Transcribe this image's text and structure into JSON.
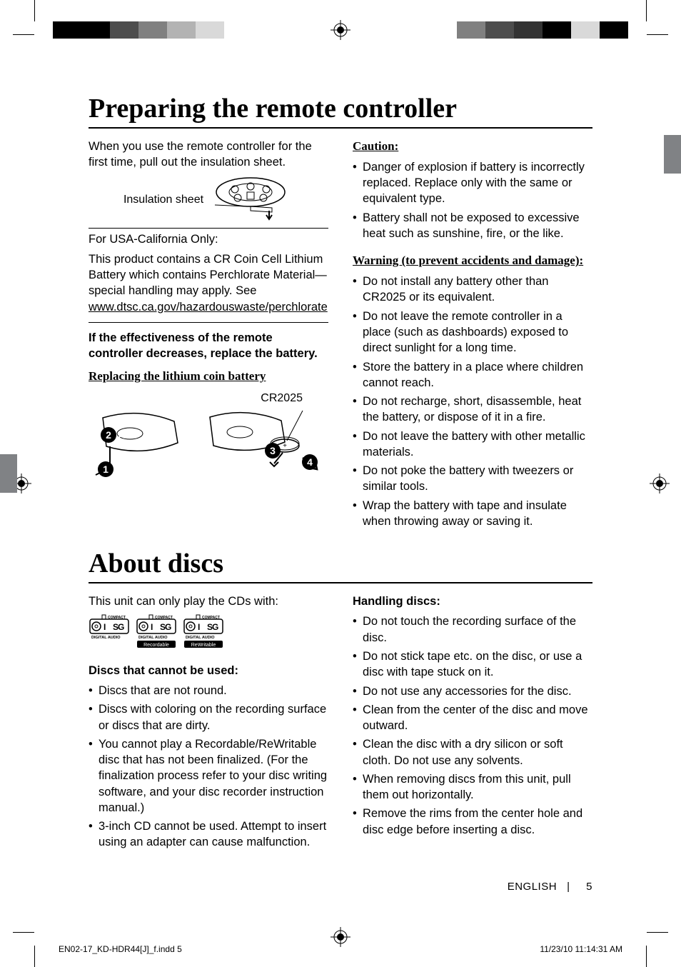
{
  "print_marks": {
    "left_bar_colors": [
      "#000000",
      "#000000",
      "#4d4d4d",
      "#808080",
      "#b3b3b3",
      "#d9d9d9",
      "#ffffff"
    ],
    "right_bar_colors": [
      "#ffffff",
      "#808080",
      "#4d4d4d",
      "#333333",
      "#000000",
      "#d9d9d9",
      "#000000"
    ],
    "side_tab_color": "#808285"
  },
  "section1": {
    "title": "Preparing the remote controller",
    "intro": "When you use the remote controller for the first time, pull out the insulation sheet.",
    "insulation_label": "Insulation sheet",
    "usa_box": {
      "line1": "For USA-California Only:",
      "body_pre": "This product contains a CR Coin Cell Lithium Battery which contains Perchlorate Material—special handling may apply. See ",
      "link": "www.dtsc.ca.gov/hazardouswaste/perchlorate"
    },
    "effectiveness": "If the effectiveness of the remote controller decreases, replace the battery.",
    "replacing_heading": "Replacing the lithium coin battery",
    "battery_label": "CR2025",
    "caution_heading": "Caution:",
    "caution_items": [
      "Danger of explosion if battery is incorrectly replaced. Replace only with the same or equivalent type.",
      "Battery shall not be exposed to excessive heat such as sunshine, fire, or the like."
    ],
    "warning_heading": "Warning (to prevent accidents and damage):",
    "warning_items": [
      "Do not install any battery other than CR2025 or its equivalent.",
      "Do not leave the remote controller in a place (such as dashboards) exposed to direct sunlight for a long time.",
      "Store the battery in a place where children cannot reach.",
      "Do not recharge, short, disassemble, heat the battery, or dispose of it in a fire.",
      "Do not leave the battery with other metallic materials.",
      "Do not poke the battery with tweezers or similar tools.",
      "Wrap the battery with tape and insulate when throwing away or saving it."
    ]
  },
  "section2": {
    "title": "About discs",
    "intro": "This unit can only play the CDs with:",
    "logos": [
      {
        "top": "COMPACT",
        "mid": "disc",
        "sub": "DIGITAL AUDIO",
        "tag": null
      },
      {
        "top": "COMPACT",
        "mid": "disc",
        "sub": "DIGITAL AUDIO",
        "tag": "Recordable"
      },
      {
        "top": "COMPACT",
        "mid": "disc",
        "sub": "DIGITAL AUDIO",
        "tag": "ReWritable"
      }
    ],
    "cannot_heading": "Discs that cannot be used:",
    "cannot_items": [
      "Discs that are not round.",
      "Discs with coloring on the recording surface or discs that are dirty.",
      "You cannot play a Recordable/ReWritable disc that has not been finalized. (For the finalization process refer to your disc writing software, and your disc recorder instruction manual.)",
      "3-inch CD cannot be used. Attempt to insert using an adapter can cause malfunction."
    ],
    "handling_heading": "Handling discs:",
    "handling_items": [
      "Do not touch the recording surface of the disc.",
      "Do not stick tape etc. on the disc, or use a disc with tape stuck on it.",
      "Do not use any accessories for the disc.",
      "Clean from the center of the disc and move outward.",
      "Clean the disc with a dry silicon or soft cloth. Do not use any solvents.",
      "When removing discs from this unit, pull them out horizontally.",
      "Remove the rims from the center hole and disc edge before inserting a disc."
    ]
  },
  "footer": {
    "lang": "ENGLISH",
    "sep": "|",
    "page": "5",
    "indd": "EN02-17_KD-HDR44[J]_f.indd   5",
    "timestamp": "11/23/10   11:14:31 AM"
  }
}
